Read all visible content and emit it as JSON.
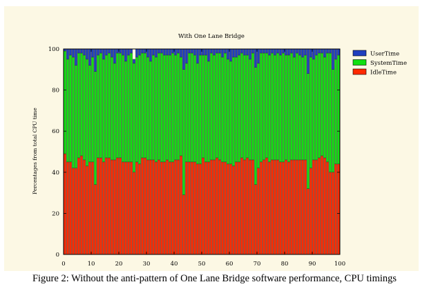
{
  "chart_data": {
    "type": "bar",
    "stacked": true,
    "title": "With One Lane Bridge",
    "ylabel": "Percentages from total CPU time",
    "xlabel": "",
    "xlim": [
      0,
      100
    ],
    "ylim": [
      0,
      100
    ],
    "x_ticks": [
      0,
      10,
      20,
      30,
      40,
      50,
      60,
      70,
      80,
      90,
      100
    ],
    "y_ticks": [
      0,
      20,
      40,
      60,
      80,
      100
    ],
    "legend_position": "top-right",
    "series": [
      {
        "name": "UserTime",
        "color": "#1f3fbf",
        "values": [
          1,
          5,
          3,
          4,
          8,
          2,
          2,
          3,
          5,
          8,
          4,
          11,
          3,
          2,
          5,
          3,
          2,
          4,
          7,
          2,
          2,
          3,
          6,
          3,
          2,
          2,
          4,
          3,
          2,
          2,
          4,
          6,
          3,
          4,
          2,
          2,
          3,
          3,
          3,
          2,
          3,
          2,
          4,
          10,
          7,
          2,
          2,
          3,
          7,
          3,
          4,
          3,
          6,
          2,
          3,
          2,
          2,
          4,
          2,
          5,
          6,
          4,
          4,
          3,
          2,
          3,
          3,
          5,
          2,
          9,
          7,
          2,
          2,
          2,
          3,
          2,
          3,
          2,
          3,
          2,
          3,
          3,
          2,
          4,
          2,
          3,
          4,
          3,
          12,
          4,
          5,
          3,
          2,
          2,
          4,
          2,
          2,
          10,
          5,
          3
        ]
      },
      {
        "name": "SystemTime",
        "color": "#11e011",
        "values": [
          50,
          50,
          52,
          54,
          50,
          51,
          50,
          51,
          52,
          47,
          51,
          55,
          50,
          51,
          50,
          50,
          51,
          50,
          47,
          51,
          51,
          52,
          49,
          52,
          53,
          53,
          51,
          53,
          51,
          51,
          50,
          48,
          51,
          51,
          52,
          53,
          52,
          51,
          52,
          53,
          51,
          52,
          48,
          61,
          48,
          53,
          53,
          52,
          49,
          53,
          50,
          52,
          49,
          52,
          51,
          51,
          52,
          51,
          53,
          51,
          50,
          53,
          51,
          52,
          51,
          51,
          50,
          49,
          52,
          57,
          51,
          53,
          52,
          51,
          52,
          52,
          51,
          52,
          52,
          53,
          51,
          52,
          52,
          50,
          52,
          51,
          50,
          51,
          56,
          54,
          49,
          51,
          51,
          50,
          49,
          53,
          58,
          50,
          51,
          53
        ]
      },
      {
        "name": "IdleTime",
        "color": "#ff2a00",
        "values": [
          49,
          45,
          45,
          42,
          42,
          47,
          48,
          46,
          43,
          45,
          45,
          34,
          47,
          47,
          45,
          47,
          47,
          46,
          46,
          47,
          47,
          45,
          45,
          45,
          45,
          40,
          45,
          44,
          47,
          47,
          46,
          46,
          46,
          45,
          46,
          45,
          45,
          46,
          45,
          45,
          46,
          46,
          48,
          29,
          45,
          45,
          45,
          45,
          44,
          44,
          47,
          45,
          45,
          46,
          46,
          47,
          46,
          45,
          45,
          44,
          44,
          43,
          45,
          45,
          47,
          46,
          47,
          46,
          46,
          34,
          42,
          45,
          46,
          47,
          45,
          46,
          46,
          46,
          45,
          45,
          46,
          45,
          46,
          46,
          46,
          46,
          46,
          46,
          32,
          42,
          46,
          46,
          47,
          48,
          47,
          45,
          40,
          40,
          44,
          44
        ]
      }
    ]
  },
  "caption": "Figure 2: Without the anti-pattern of One Lane Bridge software performance, CPU timings"
}
